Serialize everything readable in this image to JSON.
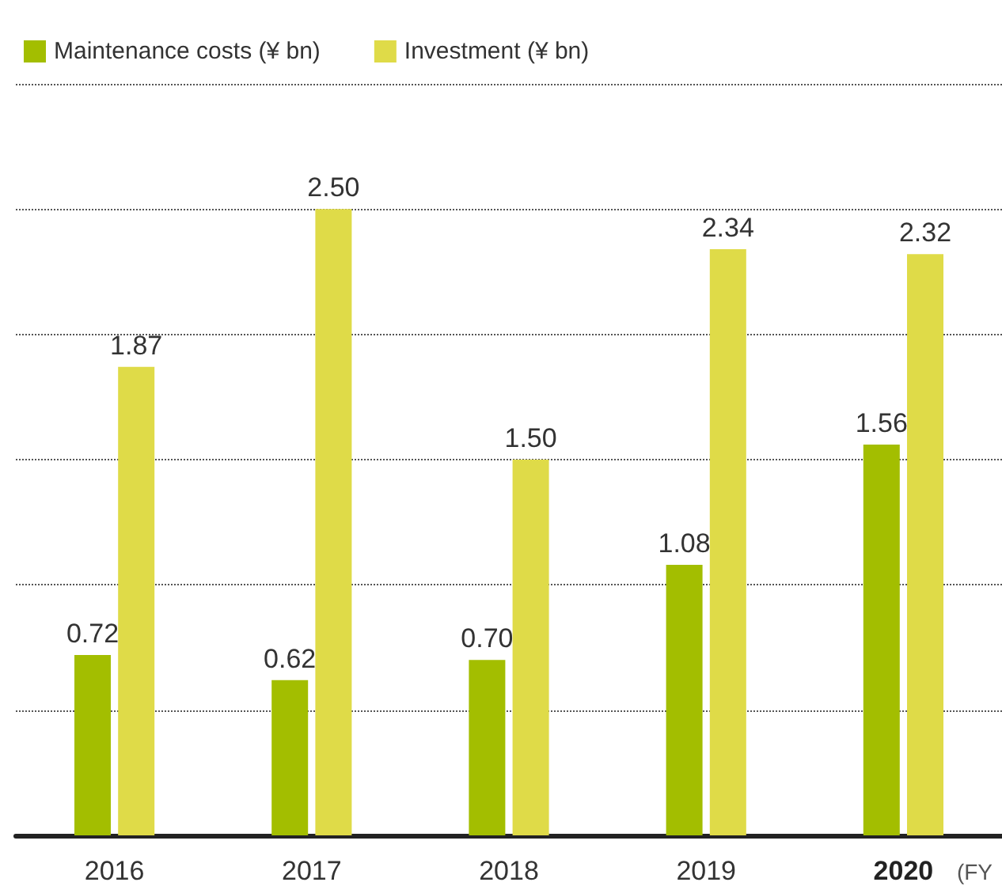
{
  "chart_data": {
    "type": "bar",
    "categories": [
      "2016",
      "2017",
      "2018",
      "2019",
      "2020"
    ],
    "series": [
      {
        "name": "Maintenance costs (¥ bn)",
        "color": "#a3be00",
        "values": [
          0.72,
          0.62,
          0.7,
          1.08,
          1.56
        ],
        "value_labels": [
          "0.72",
          "0.62",
          "0.70",
          "1.08",
          "1.56"
        ]
      },
      {
        "name": "Investment (¥ bn)",
        "color": "#dfdb48",
        "values": [
          1.87,
          2.5,
          1.5,
          2.34,
          2.32
        ],
        "value_labels": [
          "1.87",
          "2.50",
          "1.50",
          "2.34",
          "2.32"
        ]
      }
    ],
    "ylim": [
      0,
      3
    ],
    "yticks": [
      {
        "value": 0,
        "label": null
      },
      {
        "value": 0.5,
        "label": null
      },
      {
        "value": 1,
        "label": null
      },
      {
        "value": 1.5,
        "label": null
      },
      {
        "value": 2,
        "label": null
      },
      {
        "value": 2.5,
        "label": null
      },
      {
        "value": 3,
        "label": null
      }
    ],
    "grid": "y",
    "line_style": "dotted",
    "legend": "top left",
    "tick_labels": "x",
    "annotations": [
      "(FY"
    ]
  }
}
